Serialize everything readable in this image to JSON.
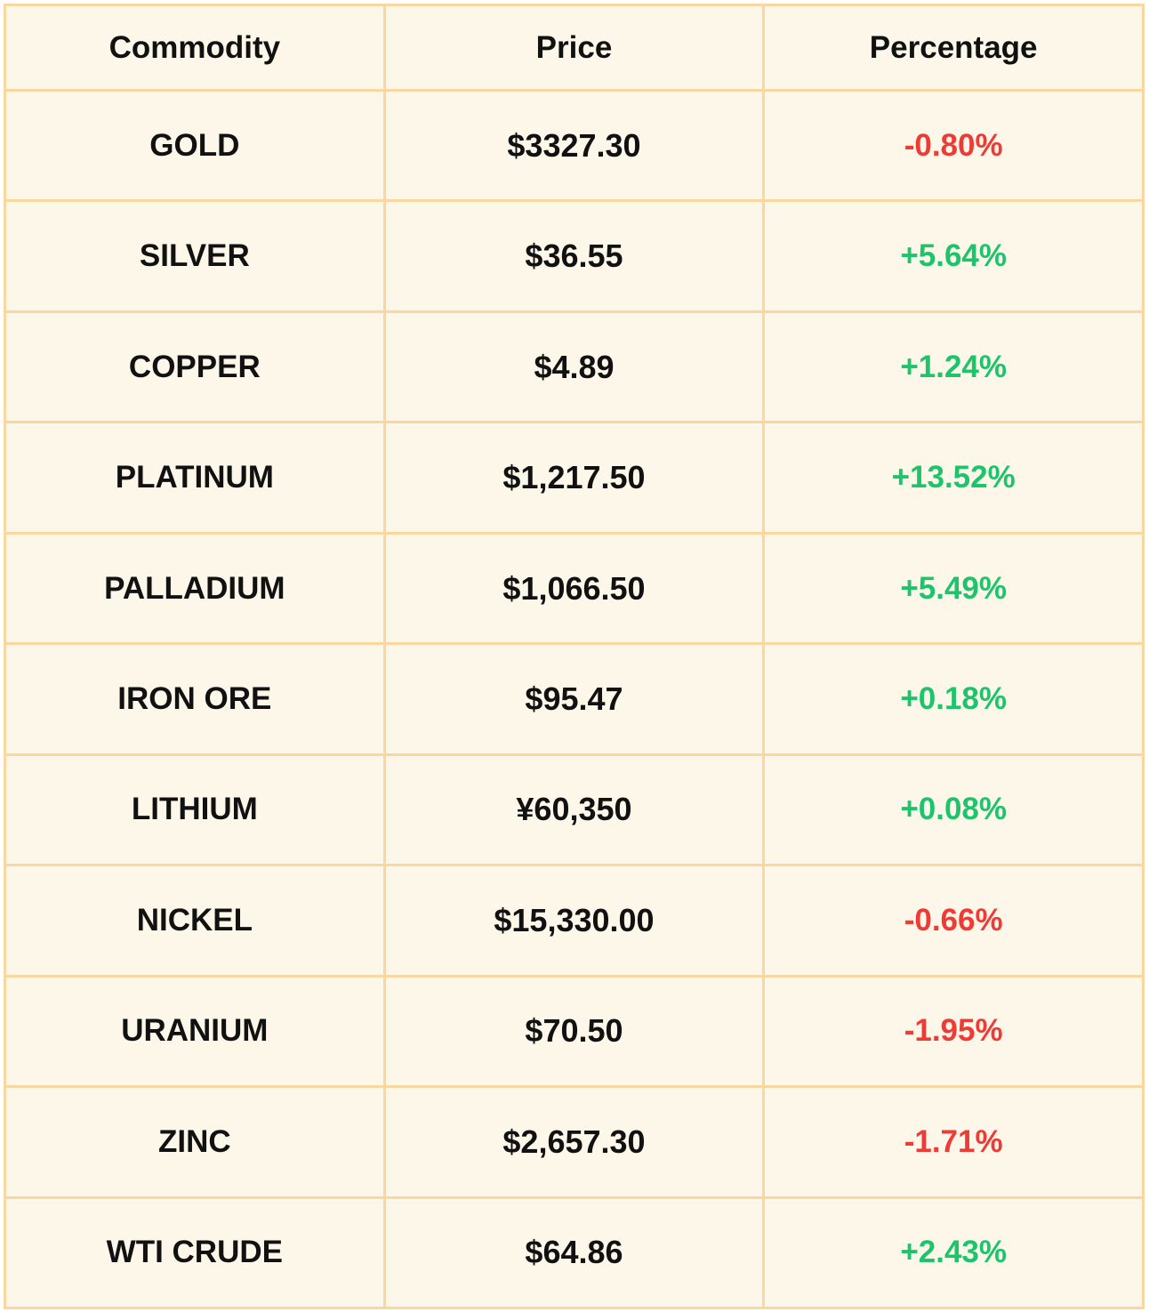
{
  "chart_data": {
    "type": "table",
    "columns": [
      "Commodity",
      "Price",
      "Percentage"
    ],
    "rows": [
      {
        "commodity": "GOLD",
        "price": "$3327.30",
        "percentage": "-0.80%",
        "direction": "down"
      },
      {
        "commodity": "SILVER",
        "price": "$36.55",
        "percentage": "+5.64%",
        "direction": "up"
      },
      {
        "commodity": "COPPER",
        "price": "$4.89",
        "percentage": "+1.24%",
        "direction": "up"
      },
      {
        "commodity": "PLATINUM",
        "price": "$1,217.50",
        "percentage": "+13.52%",
        "direction": "up"
      },
      {
        "commodity": "PALLADIUM",
        "price": "$1,066.50",
        "percentage": "+5.49%",
        "direction": "up"
      },
      {
        "commodity": "IRON ORE",
        "price": "$95.47",
        "percentage": "+0.18%",
        "direction": "up"
      },
      {
        "commodity": "LITHIUM",
        "price": "¥60,350",
        "percentage": "+0.08%",
        "direction": "up"
      },
      {
        "commodity": "NICKEL",
        "price": "$15,330.00",
        "percentage": "-0.66%",
        "direction": "down"
      },
      {
        "commodity": "URANIUM",
        "price": "$70.50",
        "percentage": "-1.95%",
        "direction": "down"
      },
      {
        "commodity": "ZINC",
        "price": "$2,657.30",
        "percentage": "-1.71%",
        "direction": "down"
      },
      {
        "commodity": "WTI CRUDE",
        "price": "$64.86",
        "percentage": "+2.43%",
        "direction": "up"
      }
    ]
  },
  "colors": {
    "border": "#fbd7a0",
    "background": "#fdf7ea",
    "text": "#111111",
    "negative": "#ef3b36",
    "positive": "#1ec46b"
  }
}
